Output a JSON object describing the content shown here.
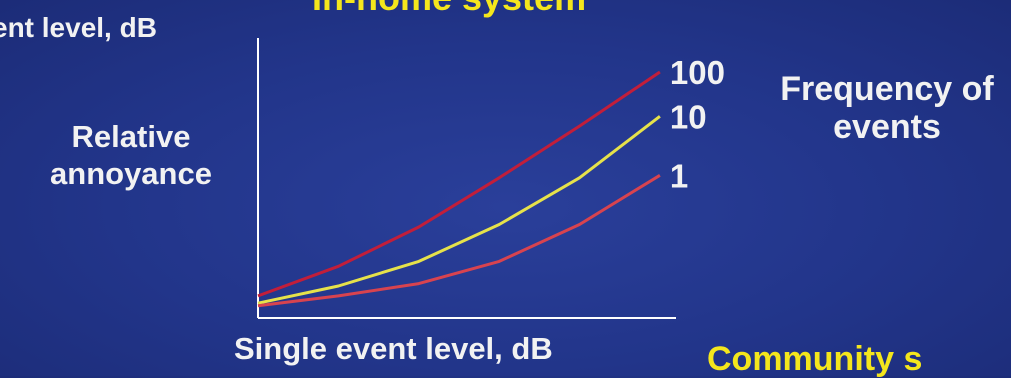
{
  "top_title": "In-home system",
  "left_label": "ent level, dB",
  "bottom_title": "Community s",
  "colors": {
    "background": "#22358a",
    "yellow_text": "#f4e61c",
    "axis": "#ffffff"
  },
  "chart_data": {
    "type": "line",
    "title": "",
    "xlabel": "Single event level, dB",
    "ylabel": "Relative annoyance",
    "legend_title": "Frequency of events",
    "legend_placement": "right",
    "grid": false,
    "x": [
      0,
      1,
      2,
      3,
      4,
      5
    ],
    "xlim": [
      0,
      5.2
    ],
    "ylim": [
      0,
      1
    ],
    "series": [
      {
        "name": "100",
        "color": "#c21e3a",
        "values": [
          0.09,
          0.21,
          0.37,
          0.57,
          0.78,
          1.0
        ]
      },
      {
        "name": "10",
        "color": "#e6e24a",
        "values": [
          0.06,
          0.13,
          0.23,
          0.38,
          0.57,
          0.82
        ]
      },
      {
        "name": "1",
        "color": "#d8434f",
        "values": [
          0.05,
          0.09,
          0.14,
          0.23,
          0.38,
          0.58
        ]
      }
    ]
  }
}
